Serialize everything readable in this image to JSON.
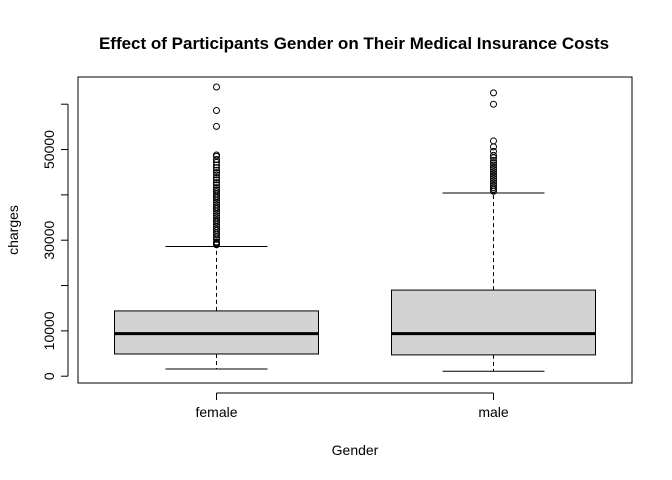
{
  "chart_data": {
    "type": "boxplot",
    "title": "Effect of Participants Gender on Their Medical Insurance Costs",
    "xlabel": "Gender",
    "ylabel": "charges",
    "ylim": [
      -1500,
      66000
    ],
    "yticks": [
      {
        "value": 0,
        "label": "0"
      },
      {
        "value": 10000,
        "label": "10000"
      },
      {
        "value": 30000,
        "label": "30000"
      },
      {
        "value": 50000,
        "label": "50000"
      }
    ],
    "box_fill": "#d3d3d3",
    "categories": [
      "female",
      "male"
    ],
    "boxes": [
      {
        "name": "female",
        "whisker_low": 1600,
        "q1": 4900,
        "median": 9400,
        "q3": 14400,
        "whisker_high": 28600,
        "outliers": [
          29000,
          29200,
          29400,
          29600,
          30200,
          30700,
          31200,
          31600,
          32100,
          32500,
          33000,
          33500,
          34000,
          34400,
          34900,
          35400,
          35900,
          36400,
          36900,
          37300,
          37800,
          38300,
          38800,
          39300,
          39700,
          40200,
          40700,
          41100,
          41600,
          42200,
          42700,
          43300,
          43800,
          44400,
          44900,
          45400,
          46000,
          46600,
          47200,
          47800,
          48500,
          48800,
          55100,
          58600,
          63800
        ]
      },
      {
        "name": "male",
        "whisker_low": 1100,
        "q1": 4700,
        "median": 9400,
        "q3": 19000,
        "whisker_high": 40400,
        "outliers": [
          40800,
          41200,
          41600,
          42100,
          42600,
          43100,
          43600,
          44100,
          44600,
          45100,
          45600,
          46100,
          46600,
          47100,
          47600,
          48200,
          48700,
          49600,
          50600,
          51900,
          60000,
          62500
        ]
      }
    ]
  }
}
